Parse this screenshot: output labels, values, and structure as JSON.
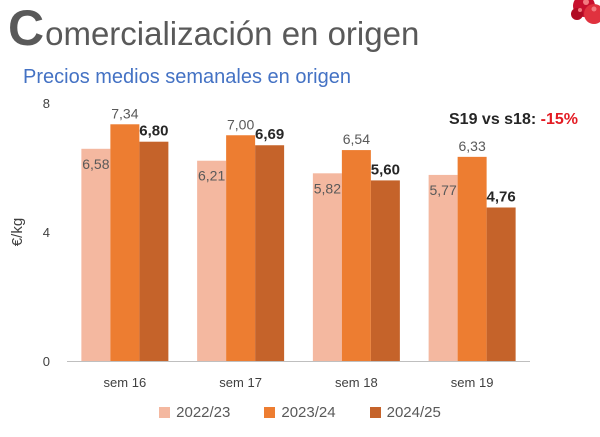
{
  "header": {
    "title_initial": "C",
    "title_rest": "omercialización en origen",
    "subtitle": "Precios medios semanales en origen"
  },
  "annotation": {
    "label": "S19 vs s18:",
    "value": "-15%"
  },
  "colors": {
    "series_2022_23": "#F4B8A0",
    "series_2023_24": "#ED7D31",
    "series_2024_25": "#C5632A",
    "subtitle": "#4472C4",
    "highlight": "#E31B23"
  },
  "chart_data": {
    "type": "bar",
    "categories": [
      "sem 16",
      "sem 17",
      "sem 18",
      "sem 19"
    ],
    "series": [
      {
        "name": "2022/23",
        "values": [
          6.58,
          6.21,
          5.82,
          5.77
        ],
        "labels": [
          "6,58",
          "6,21",
          "5,82",
          "5,77"
        ]
      },
      {
        "name": "2023/24",
        "values": [
          7.34,
          7.0,
          6.54,
          6.33
        ],
        "labels": [
          "7,34",
          "7,00",
          "6,54",
          "6,33"
        ]
      },
      {
        "name": "2024/25",
        "values": [
          6.8,
          6.69,
          5.6,
          4.76
        ],
        "labels": [
          "6,80",
          "6,69",
          "5,60",
          "4,76"
        ]
      }
    ],
    "ylabel": "€/kg",
    "ylim": [
      0,
      8
    ],
    "yticks": [
      "0",
      "4",
      "8"
    ],
    "grid": false,
    "legend_position": "bottom"
  }
}
